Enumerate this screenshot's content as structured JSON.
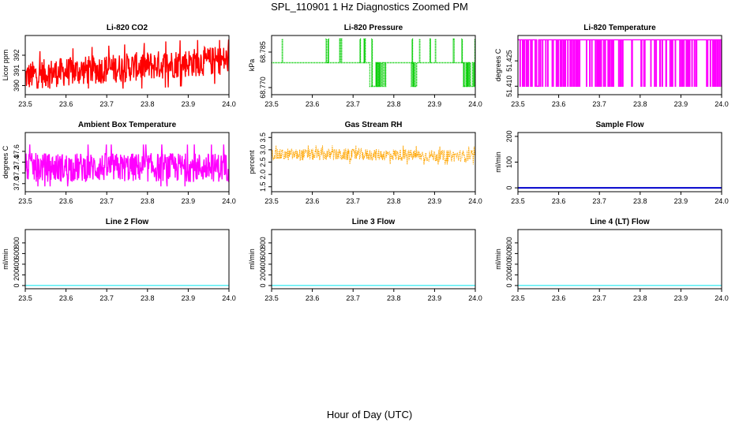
{
  "figure": {
    "title": "SPL_110901  1 Hz Diagnostics Zoomed PM",
    "xlabel": "Hour of Day (UTC)"
  },
  "chart_data": [
    {
      "type": "line",
      "title": "Li-820 CO2",
      "ylabel": "Licor ppm",
      "xlim": [
        23.5,
        24.0
      ],
      "xticks": [
        "23.5",
        "23.6",
        "23.7",
        "23.8",
        "23.9",
        "24.0"
      ],
      "ylim": [
        389.4,
        393.3
      ],
      "yticks": [
        "390",
        "391",
        "392"
      ],
      "color": "#ff0000",
      "series": [
        {
          "x": [
            23.5,
            23.55,
            23.6,
            23.65,
            23.7,
            23.75,
            23.8,
            23.85,
            23.9,
            23.95,
            24.0
          ],
          "values": [
            390.6,
            390.8,
            390.9,
            391.0,
            391.1,
            391.2,
            391.3,
            391.4,
            391.5,
            391.6,
            391.7
          ]
        }
      ],
      "approx_range": [
        389.8,
        393.0
      ]
    },
    {
      "type": "line",
      "title": "Li-820 Pressure",
      "ylabel": "kPa",
      "xlim": [
        23.5,
        24.0
      ],
      "xticks": [
        "23.5",
        "23.6",
        "23.7",
        "23.8",
        "23.9",
        "24.0"
      ],
      "ylim": [
        68.767,
        68.792
      ],
      "yticks": [
        "68.770",
        "68.785"
      ],
      "color": "#00cc00",
      "levels": [
        68.7705,
        68.7805,
        68.7905
      ],
      "series": [
        {
          "x": [
            23.5,
            23.6,
            23.7,
            23.8,
            23.9,
            24.0
          ],
          "values": [
            68.7805,
            68.7805,
            68.7805,
            68.7805,
            68.7805,
            68.7805
          ]
        }
      ]
    },
    {
      "type": "line",
      "title": "Li-820 Temperature",
      "ylabel": "degrees C",
      "xlim": [
        23.5,
        24.0
      ],
      "xticks": [
        "23.5",
        "23.6",
        "23.7",
        "23.8",
        "23.9",
        "24.0"
      ],
      "ylim": [
        51.405,
        51.44
      ],
      "yticks": [
        "51.410",
        "51.425"
      ],
      "color": "#ff00ff",
      "levels": [
        51.41,
        51.4375
      ],
      "series": [
        {
          "x": [
            23.5,
            23.6,
            23.7,
            23.8,
            23.9,
            24.0
          ],
          "values": [
            51.4375,
            51.4375,
            51.4375,
            51.4375,
            51.4375,
            51.4375
          ]
        }
      ]
    },
    {
      "type": "line",
      "title": "Ambient Box Temperature",
      "ylabel": "degrees C",
      "xlim": [
        23.5,
        24.0
      ],
      "xticks": [
        "23.5",
        "23.6",
        "23.7",
        "23.8",
        "23.9",
        "24.0"
      ],
      "ylim": [
        36.85,
        37.95
      ],
      "yticks": [
        "37.0",
        "37.2",
        "37.4",
        "37.6"
      ],
      "color": "#ff00ff",
      "series": [
        {
          "x": [
            23.5,
            23.6,
            23.7,
            23.8,
            23.9,
            24.0
          ],
          "values": [
            37.3,
            37.3,
            37.3,
            37.3,
            37.3,
            37.3
          ]
        }
      ],
      "approx_range": [
        36.95,
        37.85
      ]
    },
    {
      "type": "line",
      "title": "Gas Stream RH",
      "ylabel": "percent",
      "xlim": [
        23.5,
        24.0
      ],
      "xticks": [
        "23.5",
        "23.6",
        "23.7",
        "23.8",
        "23.9",
        "24.0"
      ],
      "ylim": [
        1.3,
        3.7
      ],
      "yticks": [
        "1.5",
        "2.0",
        "2.5",
        "3.0",
        "3.5"
      ],
      "color": "#ffa500",
      "series": [
        {
          "x": [
            23.5,
            23.6,
            23.7,
            23.8,
            23.9,
            24.0
          ],
          "values": [
            2.8,
            2.8,
            2.8,
            2.8,
            2.75,
            2.75
          ]
        }
      ],
      "approx_range": [
        2.4,
        3.2
      ]
    },
    {
      "type": "line",
      "title": "Sample Flow",
      "ylabel": "ml/min",
      "xlim": [
        23.5,
        24.0
      ],
      "xticks": [
        "23.5",
        "23.6",
        "23.7",
        "23.8",
        "23.9",
        "24.0"
      ],
      "ylim": [
        -15,
        215
      ],
      "yticks": [
        "0",
        "100",
        "200"
      ],
      "color": "#0000cc",
      "series": [
        {
          "x": [
            23.5,
            24.0
          ],
          "values": [
            0,
            0
          ]
        }
      ]
    },
    {
      "type": "line",
      "title": "Line 2 Flow",
      "ylabel": "ml/min",
      "xlim": [
        23.5,
        24.0
      ],
      "xticks": [
        "23.5",
        "23.6",
        "23.7",
        "23.8",
        "23.9",
        "24.0"
      ],
      "ylim": [
        -60,
        1050
      ],
      "yticks": [
        "0",
        "200",
        "400",
        "600",
        "800"
      ],
      "color": "#00e5ee",
      "series": [
        {
          "x": [
            23.5,
            24.0
          ],
          "values": [
            0,
            0
          ]
        }
      ]
    },
    {
      "type": "line",
      "title": "Line 3 Flow",
      "ylabel": "ml/min",
      "xlim": [
        23.5,
        24.0
      ],
      "xticks": [
        "23.5",
        "23.6",
        "23.7",
        "23.8",
        "23.9",
        "24.0"
      ],
      "ylim": [
        -60,
        1050
      ],
      "yticks": [
        "0",
        "200",
        "400",
        "600",
        "800"
      ],
      "color": "#00e5ee",
      "series": [
        {
          "x": [
            23.5,
            24.0
          ],
          "values": [
            0,
            0
          ]
        }
      ]
    },
    {
      "type": "line",
      "title": "Line 4 (LT) Flow",
      "ylabel": "ml/min",
      "xlim": [
        23.5,
        24.0
      ],
      "xticks": [
        "23.5",
        "23.6",
        "23.7",
        "23.8",
        "23.9",
        "24.0"
      ],
      "ylim": [
        -60,
        1050
      ],
      "yticks": [
        "0",
        "200",
        "400",
        "600",
        "800"
      ],
      "color": "#00e5ee",
      "series": [
        {
          "x": [
            23.5,
            24.0
          ],
          "values": [
            0,
            0
          ]
        }
      ]
    }
  ]
}
